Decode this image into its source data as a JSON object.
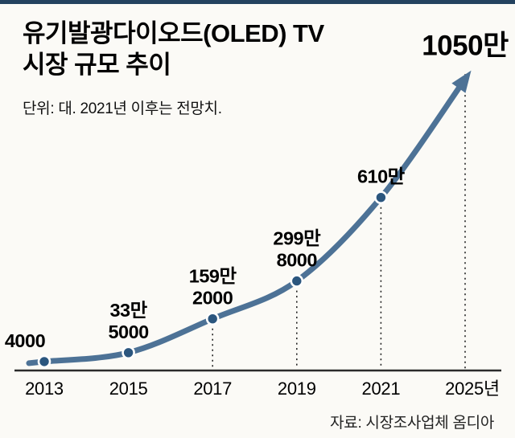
{
  "chart_data": {
    "type": "line",
    "title_lines": [
      "유기발광다이오드(OLED) TV",
      "시장 규모 추이"
    ],
    "unit_note": "단위: 대. 2021년 이후는 전망치.",
    "source": "자료: 시장조사업체 옴디아",
    "x": [
      2013,
      2015,
      2017,
      2019,
      2021,
      2025
    ],
    "x_tick_labels": [
      "2013",
      "2015",
      "2017",
      "2019",
      "2021",
      "2025년"
    ],
    "values": [
      4000,
      335000,
      1592000,
      2998000,
      6100000,
      10500000
    ],
    "point_labels": [
      [
        "4000"
      ],
      [
        "33만",
        "5000"
      ],
      [
        "159만",
        "2000"
      ],
      [
        "299만",
        "8000"
      ],
      [
        "610만"
      ],
      [
        "1050만"
      ]
    ],
    "big_label_index": 5,
    "arrow_end": true,
    "drop_lines": [
      false,
      false,
      true,
      true,
      true,
      true
    ],
    "forecast_note": "2021년 이후는 전망치",
    "ylim": [
      0,
      11000000
    ],
    "grid": "off",
    "legend": "none",
    "colors": {
      "line": "#4d7296",
      "marker": "#2b567e",
      "marker_ring": "#ffffff",
      "axis": "#2b2b2b",
      "dash": "#222222",
      "text": "#000000",
      "top_rule": "#24425f",
      "background": "#fbfaf6"
    }
  }
}
